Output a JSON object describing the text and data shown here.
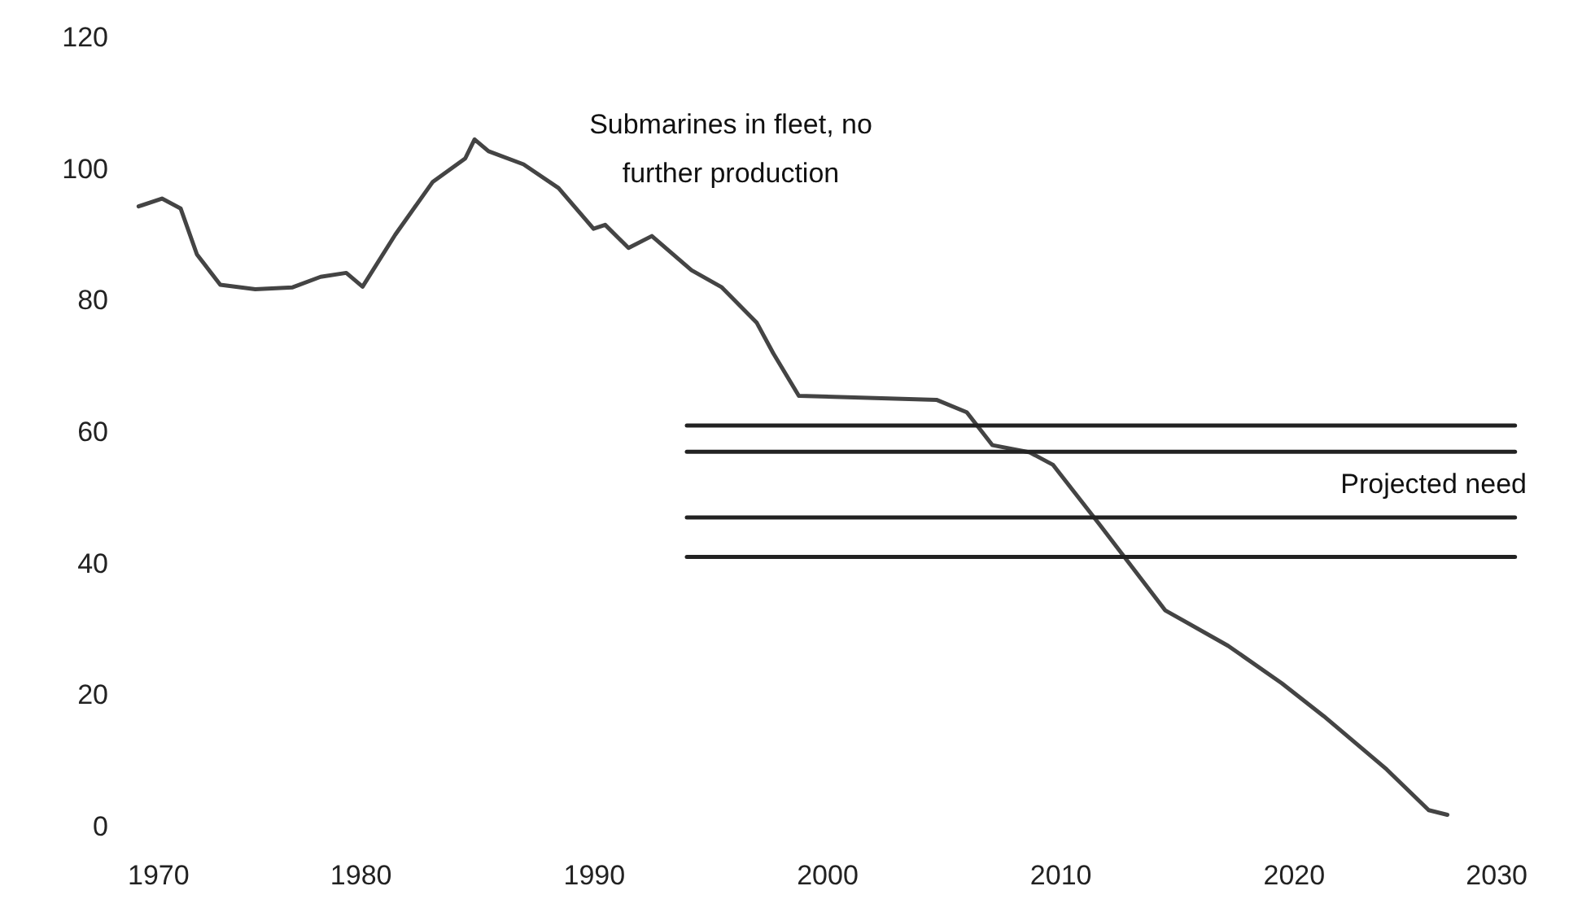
{
  "chart_data": {
    "type": "line",
    "xlim": [
      1970,
      2030
    ],
    "xticks": [
      1970,
      1980,
      1990,
      2000,
      2010,
      2020,
      2030
    ],
    "ylim": [
      0,
      120
    ],
    "yticks": [
      0,
      20,
      40,
      60,
      80,
      100,
      120
    ],
    "grid": false,
    "series": [
      {
        "color": "#444444",
        "x": [
          1970.5,
          1971.5,
          1972.3,
          1973.0,
          1974.0,
          1975.5,
          1977.1,
          1978.3,
          1979.4,
          1980.1,
          1981.5,
          1983.1,
          1984.5,
          1984.9,
          1985.5,
          1987.0,
          1988.5,
          1990.0,
          1990.5,
          1991.5,
          1992.5,
          1994.2,
          1995.5,
          1997.0,
          1997.7,
          1998.8,
          2004.7,
          2006.0,
          2007.1,
          2008.7,
          2009.7,
          2011.7,
          2014.5,
          2017.2,
          2019.5,
          2021.3,
          2024.0,
          2025.8,
          2026.6
        ],
        "values": [
          94.3,
          95.5,
          94,
          87,
          82.4,
          81.7,
          82,
          83.6,
          84.2,
          82.1,
          90,
          98,
          101.6,
          104.5,
          102.7,
          100.7,
          97.1,
          90.9,
          91.5,
          88,
          89.8,
          84.6,
          82,
          76.6,
          72,
          65.5,
          64.9,
          63,
          58,
          56.9,
          55,
          45.9,
          32.9,
          27.5,
          21.8,
          16.8,
          8.7,
          2.5,
          1.8
        ]
      },
      {
        "color": "#222222",
        "x": [
          1994,
          2029.5
        ],
        "values": [
          61,
          61
        ]
      },
      {
        "color": "#222222",
        "x": [
          1994,
          2029.5
        ],
        "values": [
          57,
          57
        ]
      },
      {
        "color": "#222222",
        "x": [
          1994,
          2029.5
        ],
        "values": [
          47,
          47
        ]
      },
      {
        "color": "#222222",
        "x": [
          1994,
          2029.5
        ],
        "values": [
          41,
          41
        ]
      }
    ],
    "annotations": [
      "Submarines in fleet, no further production",
      "Projected need"
    ]
  }
}
